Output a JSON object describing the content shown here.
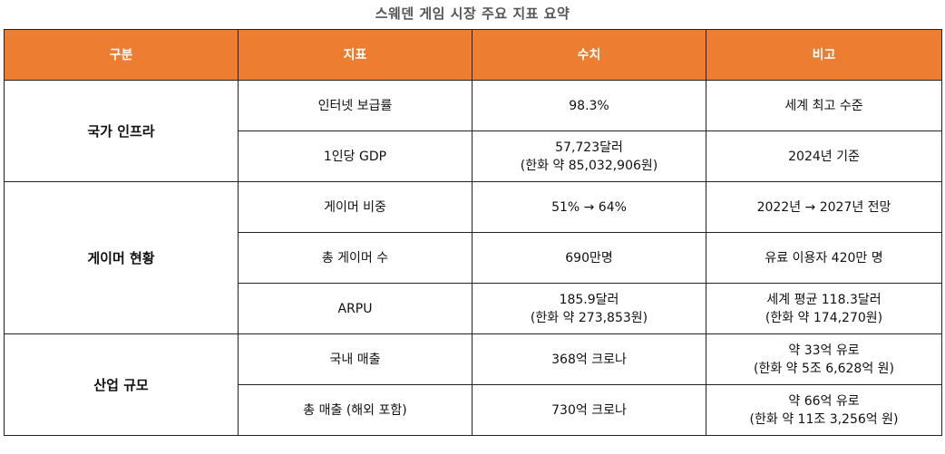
{
  "title": "스웨덴 게임 시장 주요 지표 요약",
  "header_color": "#ED7D31",
  "columns": [
    "구분",
    "지표",
    "수치",
    "비고"
  ],
  "groups": [
    {
      "category": "국가 인프라",
      "rows": [
        {
          "indicator": "인터넷 보급률",
          "value": [
            "98.3%"
          ],
          "note": [
            "세계 최고 수준"
          ]
        },
        {
          "indicator": "1인당 GDP",
          "value": [
            "57,723달러",
            "(한화 약 85,032,906원)"
          ],
          "note": [
            "2024년 기준"
          ]
        }
      ]
    },
    {
      "category": "게이머 현황",
      "rows": [
        {
          "indicator": "게이머 비중",
          "value": [
            "51% → 64%"
          ],
          "note": [
            "2022년 → 2027년 전망"
          ]
        },
        {
          "indicator": "총 게이머 수",
          "value": [
            "690만명"
          ],
          "note": [
            "유료 이용자 420만 명"
          ]
        },
        {
          "indicator": "ARPU",
          "value": [
            "185.9달러",
            "(한화 약 273,853원)"
          ],
          "note": [
            "세계 평균 118.3달러",
            "(한화 약 174,270원)"
          ]
        }
      ]
    },
    {
      "category": "산업 규모",
      "rows": [
        {
          "indicator": "국내 매출",
          "value": [
            "368억 크로나"
          ],
          "note": [
            "약 33억 유로",
            "(한화 약 5조 6,628억 원)"
          ]
        },
        {
          "indicator": "총 매출 (해외 포함)",
          "value": [
            "730억 크로나"
          ],
          "note": [
            "약 66억 유로",
            "(한화 약 11조 3,256억 원)"
          ]
        }
      ]
    }
  ]
}
